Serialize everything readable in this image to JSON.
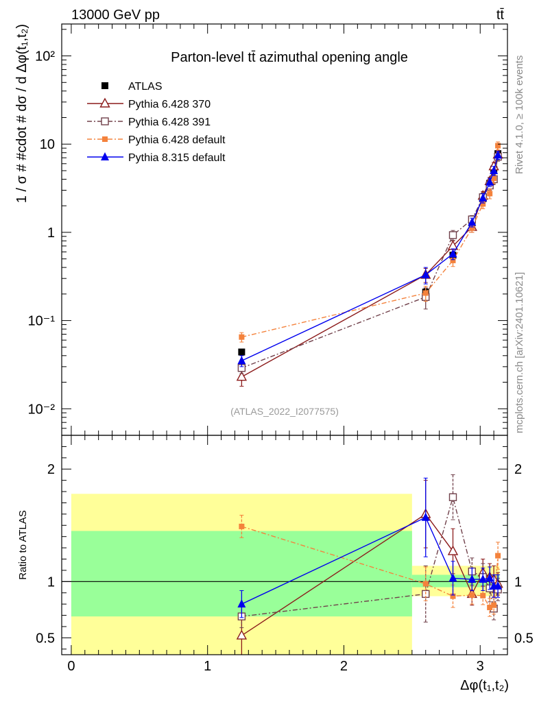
{
  "header": {
    "energy_label": "13000 GeV pp",
    "process_label": "tt̄"
  },
  "side_labels": {
    "rivet": "Rivet 4.1.0, ≥ 100k events",
    "mcplots": "mcplots.cern.ch [arXiv:2401.10621]"
  },
  "analysis_id": "(ATLAS_2022_I2077575)",
  "chart_data": [
    {
      "type": "line",
      "scale": "log",
      "title": "Parton-level tt̄ azimuthal opening angle",
      "ylabel": "1 / σ # #cdot # dσ / d Δφ(t₁,t₂)",
      "xlim": [
        -0.07,
        3.2
      ],
      "ylim": [
        0.005,
        230
      ],
      "ytick_labels": [
        "10⁻²",
        "10⁻¹",
        "1",
        "10",
        "10²"
      ],
      "legend_position": "top-left",
      "x": [
        1.25,
        2.6,
        2.8,
        2.94,
        3.02,
        3.07,
        3.1,
        3.13
      ],
      "series": [
        {
          "name": "ATLAS",
          "color": "#000000",
          "marker": "square-filled",
          "line": "none",
          "values": [
            0.044,
            0.21,
            0.55,
            1.28,
            2.4,
            3.6,
            5.2,
            7.8
          ],
          "errors": [
            0.003,
            0.02,
            0.05,
            0.1,
            0.2,
            0.3,
            0.4,
            0.6
          ]
        },
        {
          "name": "Pythia 6.428 370",
          "color": "#8b1a1a",
          "marker": "triangle-open",
          "line": "solid",
          "values": [
            0.023,
            0.33,
            0.7,
            1.15,
            2.6,
            3.8,
            5.6,
            7.6
          ],
          "errors": [
            0.005,
            0.06,
            0.1,
            0.15,
            0.3,
            0.4,
            0.6,
            0.8
          ]
        },
        {
          "name": "Pythia 6.428 391",
          "color": "#70404a",
          "marker": "square-open",
          "line": "dashdot",
          "values": [
            0.029,
            0.185,
            0.93,
            1.4,
            2.5,
            3.4,
            4.0,
            7.2
          ],
          "errors": [
            0.004,
            0.05,
            0.12,
            0.15,
            0.3,
            0.4,
            0.5,
            0.8
          ]
        },
        {
          "name": "Pythia 6.428 default",
          "color": "#f4823c",
          "marker": "square-filled-small",
          "line": "dashdot",
          "values": [
            0.065,
            0.205,
            0.48,
            1.12,
            2.1,
            2.75,
            4.1,
            9.6
          ],
          "errors": [
            0.008,
            0.04,
            0.07,
            0.12,
            0.25,
            0.35,
            0.5,
            1.0
          ]
        },
        {
          "name": "Pythia 8.315 default",
          "color": "#0000ee",
          "marker": "triangle-filled",
          "line": "solid",
          "values": [
            0.035,
            0.33,
            0.57,
            1.3,
            2.45,
            3.7,
            5.0,
            7.5
          ],
          "errors": [
            0.005,
            0.07,
            0.08,
            0.15,
            0.3,
            0.4,
            0.6,
            0.8
          ]
        }
      ]
    },
    {
      "type": "line",
      "ylabel": "Ratio to ATLAS",
      "xlabel": "Δφ(t₁,t₂)",
      "xlim": [
        -0.07,
        3.2
      ],
      "ylim": [
        0.35,
        2.3
      ],
      "xtick_labels": [
        "0",
        "1",
        "2",
        "3"
      ],
      "ytick_labels": [
        "0.5",
        "1",
        "2"
      ],
      "reference_line": 1,
      "uncertainty_bands": [
        {
          "x0": 0.0,
          "x1": 2.5,
          "inner": [
            0.69,
            1.45
          ],
          "outer": [
            0.35,
            1.78
          ]
        },
        {
          "x0": 2.5,
          "x1": 3.1416,
          "inner": [
            0.95,
            1.06
          ],
          "outer": [
            0.87,
            1.14
          ]
        }
      ],
      "x": [
        1.25,
        2.6,
        2.8,
        2.94,
        3.02,
        3.07,
        3.1,
        3.13
      ],
      "series": [
        {
          "name": "Pythia 6.428 370",
          "color": "#8b1a1a",
          "values": [
            0.52,
            1.6,
            1.27,
            0.89,
            1.08,
            1.04,
            1.02,
            0.98
          ],
          "errors": [
            0.18,
            0.3,
            0.2,
            0.1,
            0.12,
            0.12,
            0.12,
            0.1
          ]
        },
        {
          "name": "Pythia 6.428 391",
          "color": "#70404a",
          "values": [
            0.69,
            0.89,
            1.75,
            1.09,
            1.04,
            0.94,
            0.76,
            0.93
          ],
          "errors": [
            0.1,
            0.25,
            0.2,
            0.12,
            0.12,
            0.12,
            0.1,
            0.1
          ]
        },
        {
          "name": "Pythia 6.428 default",
          "color": "#f4823c",
          "values": [
            1.49,
            0.98,
            0.87,
            0.88,
            0.875,
            0.77,
            0.79,
            1.23
          ],
          "errors": [
            0.1,
            0.15,
            0.1,
            0.08,
            0.08,
            0.08,
            0.08,
            0.12
          ]
        },
        {
          "name": "Pythia 8.315 default",
          "color": "#0000ee",
          "values": [
            0.8,
            1.57,
            1.03,
            1.02,
            1.02,
            1.03,
            0.96,
            0.96
          ],
          "errors": [
            0.12,
            0.35,
            0.15,
            0.1,
            0.1,
            0.1,
            0.1,
            0.1
          ]
        }
      ]
    }
  ]
}
